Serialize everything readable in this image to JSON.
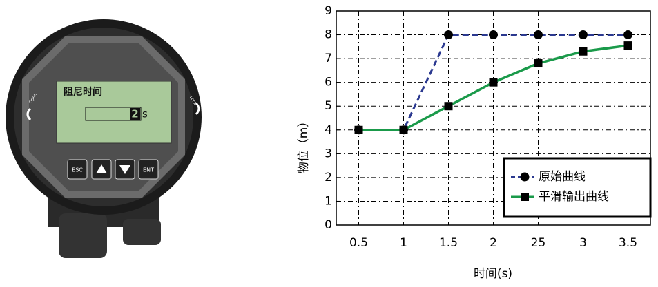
{
  "device": {
    "display_title": "阻尼时间",
    "display_value": "2",
    "display_unit": "s",
    "left_label": "Open",
    "right_label": "Lock",
    "buttons": [
      "ESC",
      "ENT"
    ]
  },
  "chart_data": {
    "type": "line",
    "x_label": "时间(s)",
    "y_label": "物位（m）",
    "categories": [
      "0.5",
      "1",
      "1.5",
      "2",
      "25",
      "3",
      "3.5"
    ],
    "series": [
      {
        "name": "原始曲线",
        "color": "#2b3990",
        "marker": "circle",
        "dashed": true,
        "values": [
          4,
          4,
          8,
          8,
          8,
          8,
          8
        ]
      },
      {
        "name": "平滑输出曲线",
        "color": "#1a9a4a",
        "marker": "square",
        "dashed": false,
        "values": [
          4,
          4,
          5,
          6,
          6.8,
          7.3,
          7.55
        ]
      }
    ],
    "ylim": [
      0,
      9
    ],
    "yticks": [
      0,
      1,
      2,
      3,
      4,
      5,
      6,
      7,
      8,
      9
    ],
    "grid": true,
    "legend": "lower right"
  }
}
